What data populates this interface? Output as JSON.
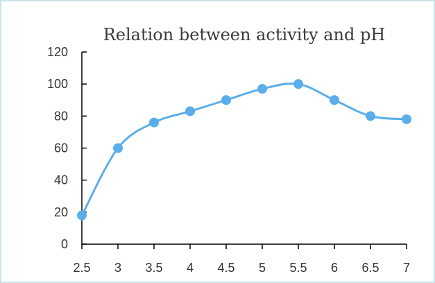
{
  "chart_data": {
    "type": "line",
    "title": "Relation between activity and pH",
    "xlabel": "",
    "ylabel": "",
    "x": [
      2.5,
      3,
      3.5,
      4,
      4.5,
      5,
      5.5,
      6,
      6.5,
      7
    ],
    "x_tick_labels": [
      "2.5",
      "3",
      "3.5",
      "4",
      "4.5",
      "5",
      "5.5",
      "6",
      "6.5",
      "7"
    ],
    "y_ticks": [
      0,
      20,
      40,
      60,
      80,
      100,
      120
    ],
    "ylim": [
      0,
      120
    ],
    "xlim": [
      2.5,
      7
    ],
    "smooth": true,
    "grid": false,
    "legend": "none",
    "series": [
      {
        "values": [
          18,
          60,
          76,
          83,
          90,
          97,
          100,
          90,
          80,
          78
        ]
      }
    ],
    "colors": {
      "series": "#5aaeea",
      "axis": "#000000",
      "frame": "#c9e3e6"
    }
  }
}
